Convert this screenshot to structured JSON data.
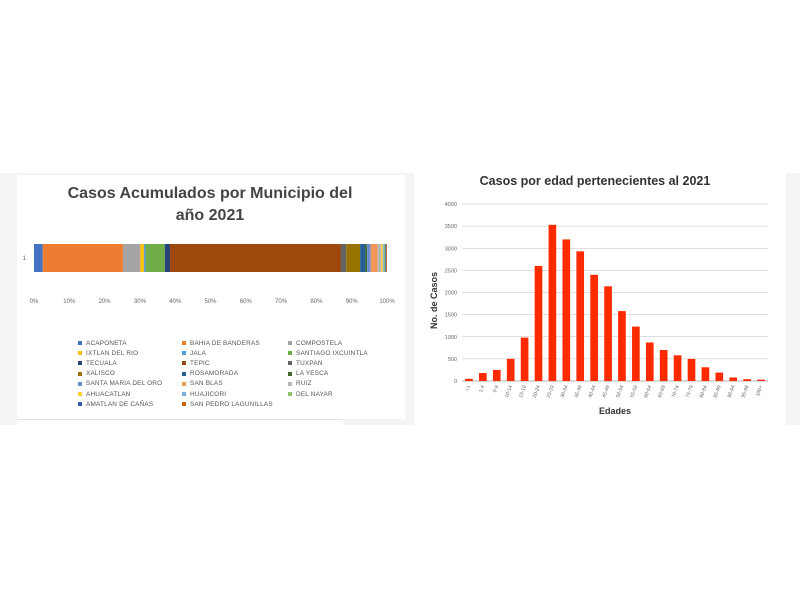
{
  "chart_data": [
    {
      "type": "bar",
      "orientation": "horizontal-stacked-100",
      "title": "Casos Acumulados por Municipio del año 2021",
      "categories": [
        "1"
      ],
      "x_ticks": [
        "0%",
        "10%",
        "20%",
        "30%",
        "40%",
        "50%",
        "60%",
        "70%",
        "80%",
        "90%",
        "100%"
      ],
      "legend_placement": "bottom",
      "series": [
        {
          "name": "ACAPONETA",
          "color": "#4472c4",
          "values": [
            2.5
          ]
        },
        {
          "name": "BAHIA DE BANDERAS",
          "color": "#ed7d31",
          "values": [
            23.0
          ]
        },
        {
          "name": "COMPOSTELA",
          "color": "#a5a5a5",
          "values": [
            5.0
          ]
        },
        {
          "name": "IXTLAN DEL RIO",
          "color": "#ffc000",
          "values": [
            1.0
          ]
        },
        {
          "name": "JALA",
          "color": "#5b9bd5",
          "values": [
            0.5
          ]
        },
        {
          "name": "SANTIAGO IXCUINTLA",
          "color": "#70ad47",
          "values": [
            5.5
          ]
        },
        {
          "name": "TECUALA",
          "color": "#264478",
          "values": [
            1.5
          ]
        },
        {
          "name": "TEPIC",
          "color": "#9e480e",
          "values": [
            49.0
          ]
        },
        {
          "name": "TUXPAN",
          "color": "#636363",
          "values": [
            1.5
          ]
        },
        {
          "name": "XALISCO",
          "color": "#997300",
          "values": [
            4.0
          ]
        },
        {
          "name": "ROSAMORADA",
          "color": "#255e91",
          "values": [
            1.5
          ]
        },
        {
          "name": "LA YESCA",
          "color": "#43682b",
          "values": [
            0.5
          ]
        },
        {
          "name": "SANTA MARIA DEL ORO",
          "color": "#698ed0",
          "values": [
            1.0
          ]
        },
        {
          "name": "SAN BLAS",
          "color": "#f1975a",
          "values": [
            2.0
          ]
        },
        {
          "name": "RUIZ",
          "color": "#b7b7b7",
          "values": [
            1.0
          ]
        },
        {
          "name": "AHUACATLAN",
          "color": "#ffcd33",
          "values": [
            0.5
          ]
        },
        {
          "name": "HUAJICORI",
          "color": "#7cafdd",
          "values": [
            0.3
          ]
        },
        {
          "name": "DEL NAYAR",
          "color": "#8cc168",
          "values": [
            0.4
          ]
        },
        {
          "name": "AMATLAN DE CAÑAS",
          "color": "#335aa1",
          "values": [
            0.3
          ]
        },
        {
          "name": "SAN PEDRO LAGUNILLAS",
          "color": "#d26012",
          "values": [
            0.2
          ]
        }
      ]
    },
    {
      "type": "bar",
      "title": "Casos por edad pertenecientes al 2021",
      "xlabel": "Edades",
      "ylabel": "No. de Casos",
      "ylim": [
        0,
        4000
      ],
      "y_ticks": [
        "0",
        "500",
        "1000",
        "1500",
        "2000",
        "2500",
        "3000",
        "3500",
        "4000"
      ],
      "grid": "horizontal",
      "bar_color": "#ff2a00",
      "categories": [
        "<1",
        "1-4",
        "5-9",
        "10-14",
        "15-19",
        "20-24",
        "25-29",
        "30-34",
        "35-39",
        "40-44",
        "45-49",
        "50-54",
        "55-59",
        "60-64",
        "65-69",
        "70-74",
        "75-79",
        "80-84",
        "85-89",
        "90-94",
        "95-99",
        "100+"
      ],
      "values": [
        50,
        180,
        250,
        500,
        980,
        2600,
        3530,
        3200,
        2930,
        2400,
        2140,
        1580,
        1230,
        870,
        700,
        580,
        500,
        310,
        190,
        80,
        40,
        30
      ]
    }
  ]
}
